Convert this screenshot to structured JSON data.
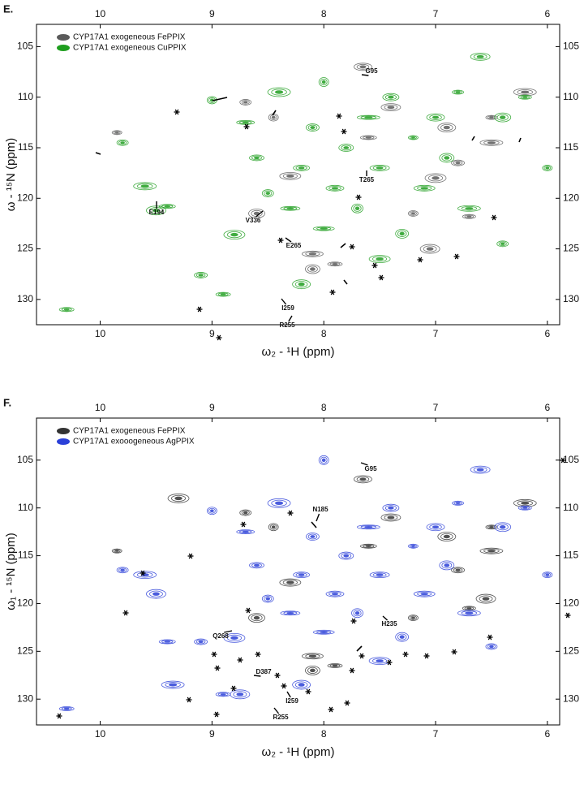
{
  "chart_data": [
    {
      "type": "scatter",
      "panel_label": "E.",
      "xlabel": "ω₂ - ¹H (ppm)",
      "ylabel": "ω - ¹⁵N (ppm)",
      "xlim": [
        10.57,
        5.89
      ],
      "ylim": [
        132.5,
        102.8
      ],
      "xticks": [
        10,
        9,
        8,
        7,
        6
      ],
      "yticks": [
        105,
        110,
        115,
        120,
        125,
        130
      ],
      "legend": "upper left",
      "series": [
        {
          "name": "CYP17A1 exogeneous FePPIX",
          "color": "#5a5a5a",
          "x": [
            9.85,
            8.1,
            7.65,
            8.1,
            6.5,
            6.5,
            7.4,
            8.6,
            6.7,
            7.2,
            8.3,
            6.9,
            7.9,
            8.7,
            6.2,
            7.05,
            7.6,
            6.8,
            8.45,
            7.0
          ],
          "y": [
            113.5,
            125.5,
            107,
            127,
            112,
            114.5,
            111,
            121.5,
            121.8,
            121.5,
            117.8,
            113,
            126.5,
            110.5,
            109.5,
            125,
            114,
            116.5,
            112,
            118
          ]
        },
        {
          "name": "CYP17A1 exogeneous CuPPIX",
          "color": "#1f9e1f",
          "x": [
            10.3,
            9.8,
            9.6,
            9.5,
            9.4,
            9.1,
            9.0,
            8.8,
            8.7,
            8.6,
            8.5,
            8.4,
            8.3,
            8.2,
            8.1,
            8.0,
            8.0,
            7.9,
            7.8,
            7.7,
            7.6,
            7.5,
            7.4,
            7.3,
            7.2,
            7.1,
            7.0,
            6.9,
            6.8,
            6.7,
            6.6,
            6.4,
            6.2,
            6.0,
            7.5,
            8.2,
            8.9,
            6.4
          ],
          "y": [
            131,
            114.5,
            118.8,
            121.2,
            120.8,
            127.6,
            110.3,
            123.6,
            112.5,
            116,
            119.5,
            109.5,
            121,
            117,
            113,
            108.5,
            123,
            119,
            115,
            121,
            112,
            117,
            110,
            123.5,
            114,
            119,
            112,
            116,
            109.5,
            121,
            106,
            112,
            110,
            117,
            126,
            128.5,
            129.5,
            124.5
          ]
        }
      ],
      "annotations": [
        "G95",
        "E194",
        "V336",
        "T265",
        "E265",
        "I259",
        "R255"
      ]
    },
    {
      "type": "scatter",
      "panel_label": "F.",
      "xlabel": "ω₂ - ¹H (ppm)",
      "ylabel": "ω₁ - ¹⁵N (ppm)",
      "xlim": [
        10.57,
        5.89
      ],
      "ylim": [
        132.7,
        100.6
      ],
      "xticks": [
        10,
        9,
        8,
        7,
        6
      ],
      "yticks": [
        105,
        110,
        115,
        120,
        125,
        130
      ],
      "legend": "upper left",
      "series": [
        {
          "name": "CYP17A1 exogeneous FePPIX",
          "color": "#333333",
          "x": [
            9.85,
            8.1,
            7.65,
            8.1,
            6.5,
            6.5,
            7.4,
            8.6,
            6.7,
            7.2,
            8.3,
            6.9,
            7.9,
            8.7,
            6.2,
            6.55,
            7.6,
            6.8,
            8.45,
            9.3
          ],
          "y": [
            114.5,
            125.5,
            107,
            127,
            112,
            114.5,
            111,
            121.5,
            120.5,
            121.5,
            117.8,
            113,
            126.5,
            110.5,
            109.5,
            119.5,
            114,
            116.5,
            112,
            109
          ]
        },
        {
          "name": "CYP17A1 exooogeneous AgPPIX",
          "color": "#2b40d8",
          "x": [
            10.3,
            9.8,
            9.6,
            9.5,
            9.4,
            9.1,
            9.0,
            8.8,
            8.7,
            8.6,
            8.5,
            8.4,
            8.3,
            8.2,
            8.1,
            8.0,
            8.0,
            7.9,
            7.8,
            7.7,
            7.6,
            7.5,
            7.4,
            7.3,
            7.2,
            7.1,
            7.0,
            6.9,
            6.8,
            6.7,
            6.6,
            6.4,
            6.2,
            6.0,
            7.5,
            8.2,
            8.9,
            6.5,
            9.35,
            8.75
          ],
          "y": [
            131,
            116.5,
            117,
            119,
            124,
            124,
            110.3,
            123.6,
            112.5,
            116,
            119.5,
            109.5,
            121,
            117,
            113,
            105,
            123,
            119,
            115,
            121,
            112,
            117,
            110,
            123.5,
            114,
            119,
            112,
            116,
            109.5,
            121,
            106,
            112,
            110,
            117,
            126,
            128.5,
            129.5,
            124.5,
            128.5,
            129.5
          ]
        }
      ],
      "annotations": [
        "G95",
        "N185",
        "Q268",
        "H235",
        "D387",
        "I259",
        "R255"
      ]
    }
  ]
}
